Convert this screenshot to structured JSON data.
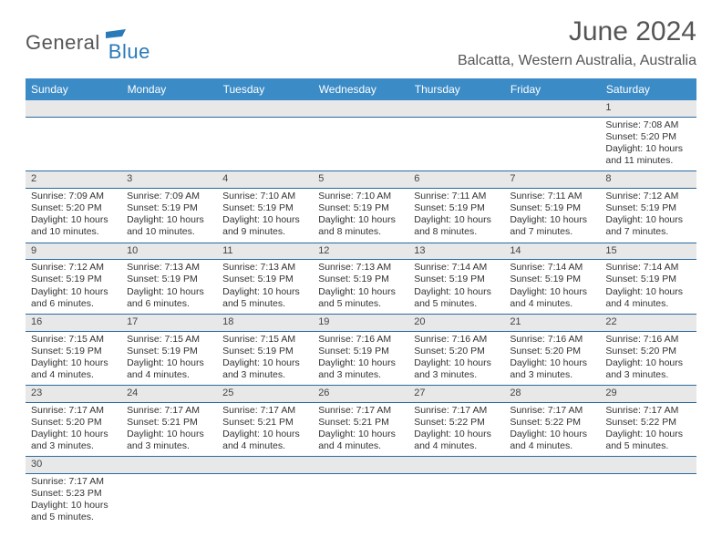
{
  "logo": {
    "text1": "General",
    "text2": "Blue"
  },
  "title": "June 2024",
  "location": "Balcatta, Western Australia, Australia",
  "header_bg": "#3b8bc7",
  "daynum_bg": "#e8e8e8",
  "row_border": "#2a6aa0",
  "weekdays": [
    "Sunday",
    "Monday",
    "Tuesday",
    "Wednesday",
    "Thursday",
    "Friday",
    "Saturday"
  ],
  "weeks": [
    [
      null,
      null,
      null,
      null,
      null,
      null,
      {
        "n": "1",
        "sr": "Sunrise: 7:08 AM",
        "ss": "Sunset: 5:20 PM",
        "dl": "Daylight: 10 hours and 11 minutes."
      }
    ],
    [
      {
        "n": "2",
        "sr": "Sunrise: 7:09 AM",
        "ss": "Sunset: 5:20 PM",
        "dl": "Daylight: 10 hours and 10 minutes."
      },
      {
        "n": "3",
        "sr": "Sunrise: 7:09 AM",
        "ss": "Sunset: 5:19 PM",
        "dl": "Daylight: 10 hours and 10 minutes."
      },
      {
        "n": "4",
        "sr": "Sunrise: 7:10 AM",
        "ss": "Sunset: 5:19 PM",
        "dl": "Daylight: 10 hours and 9 minutes."
      },
      {
        "n": "5",
        "sr": "Sunrise: 7:10 AM",
        "ss": "Sunset: 5:19 PM",
        "dl": "Daylight: 10 hours and 8 minutes."
      },
      {
        "n": "6",
        "sr": "Sunrise: 7:11 AM",
        "ss": "Sunset: 5:19 PM",
        "dl": "Daylight: 10 hours and 8 minutes."
      },
      {
        "n": "7",
        "sr": "Sunrise: 7:11 AM",
        "ss": "Sunset: 5:19 PM",
        "dl": "Daylight: 10 hours and 7 minutes."
      },
      {
        "n": "8",
        "sr": "Sunrise: 7:12 AM",
        "ss": "Sunset: 5:19 PM",
        "dl": "Daylight: 10 hours and 7 minutes."
      }
    ],
    [
      {
        "n": "9",
        "sr": "Sunrise: 7:12 AM",
        "ss": "Sunset: 5:19 PM",
        "dl": "Daylight: 10 hours and 6 minutes."
      },
      {
        "n": "10",
        "sr": "Sunrise: 7:13 AM",
        "ss": "Sunset: 5:19 PM",
        "dl": "Daylight: 10 hours and 6 minutes."
      },
      {
        "n": "11",
        "sr": "Sunrise: 7:13 AM",
        "ss": "Sunset: 5:19 PM",
        "dl": "Daylight: 10 hours and 5 minutes."
      },
      {
        "n": "12",
        "sr": "Sunrise: 7:13 AM",
        "ss": "Sunset: 5:19 PM",
        "dl": "Daylight: 10 hours and 5 minutes."
      },
      {
        "n": "13",
        "sr": "Sunrise: 7:14 AM",
        "ss": "Sunset: 5:19 PM",
        "dl": "Daylight: 10 hours and 5 minutes."
      },
      {
        "n": "14",
        "sr": "Sunrise: 7:14 AM",
        "ss": "Sunset: 5:19 PM",
        "dl": "Daylight: 10 hours and 4 minutes."
      },
      {
        "n": "15",
        "sr": "Sunrise: 7:14 AM",
        "ss": "Sunset: 5:19 PM",
        "dl": "Daylight: 10 hours and 4 minutes."
      }
    ],
    [
      {
        "n": "16",
        "sr": "Sunrise: 7:15 AM",
        "ss": "Sunset: 5:19 PM",
        "dl": "Daylight: 10 hours and 4 minutes."
      },
      {
        "n": "17",
        "sr": "Sunrise: 7:15 AM",
        "ss": "Sunset: 5:19 PM",
        "dl": "Daylight: 10 hours and 4 minutes."
      },
      {
        "n": "18",
        "sr": "Sunrise: 7:15 AM",
        "ss": "Sunset: 5:19 PM",
        "dl": "Daylight: 10 hours and 3 minutes."
      },
      {
        "n": "19",
        "sr": "Sunrise: 7:16 AM",
        "ss": "Sunset: 5:19 PM",
        "dl": "Daylight: 10 hours and 3 minutes."
      },
      {
        "n": "20",
        "sr": "Sunrise: 7:16 AM",
        "ss": "Sunset: 5:20 PM",
        "dl": "Daylight: 10 hours and 3 minutes."
      },
      {
        "n": "21",
        "sr": "Sunrise: 7:16 AM",
        "ss": "Sunset: 5:20 PM",
        "dl": "Daylight: 10 hours and 3 minutes."
      },
      {
        "n": "22",
        "sr": "Sunrise: 7:16 AM",
        "ss": "Sunset: 5:20 PM",
        "dl": "Daylight: 10 hours and 3 minutes."
      }
    ],
    [
      {
        "n": "23",
        "sr": "Sunrise: 7:17 AM",
        "ss": "Sunset: 5:20 PM",
        "dl": "Daylight: 10 hours and 3 minutes."
      },
      {
        "n": "24",
        "sr": "Sunrise: 7:17 AM",
        "ss": "Sunset: 5:21 PM",
        "dl": "Daylight: 10 hours and 3 minutes."
      },
      {
        "n": "25",
        "sr": "Sunrise: 7:17 AM",
        "ss": "Sunset: 5:21 PM",
        "dl": "Daylight: 10 hours and 4 minutes."
      },
      {
        "n": "26",
        "sr": "Sunrise: 7:17 AM",
        "ss": "Sunset: 5:21 PM",
        "dl": "Daylight: 10 hours and 4 minutes."
      },
      {
        "n": "27",
        "sr": "Sunrise: 7:17 AM",
        "ss": "Sunset: 5:22 PM",
        "dl": "Daylight: 10 hours and 4 minutes."
      },
      {
        "n": "28",
        "sr": "Sunrise: 7:17 AM",
        "ss": "Sunset: 5:22 PM",
        "dl": "Daylight: 10 hours and 4 minutes."
      },
      {
        "n": "29",
        "sr": "Sunrise: 7:17 AM",
        "ss": "Sunset: 5:22 PM",
        "dl": "Daylight: 10 hours and 5 minutes."
      }
    ],
    [
      {
        "n": "30",
        "sr": "Sunrise: 7:17 AM",
        "ss": "Sunset: 5:23 PM",
        "dl": "Daylight: 10 hours and 5 minutes."
      },
      null,
      null,
      null,
      null,
      null,
      null
    ]
  ]
}
